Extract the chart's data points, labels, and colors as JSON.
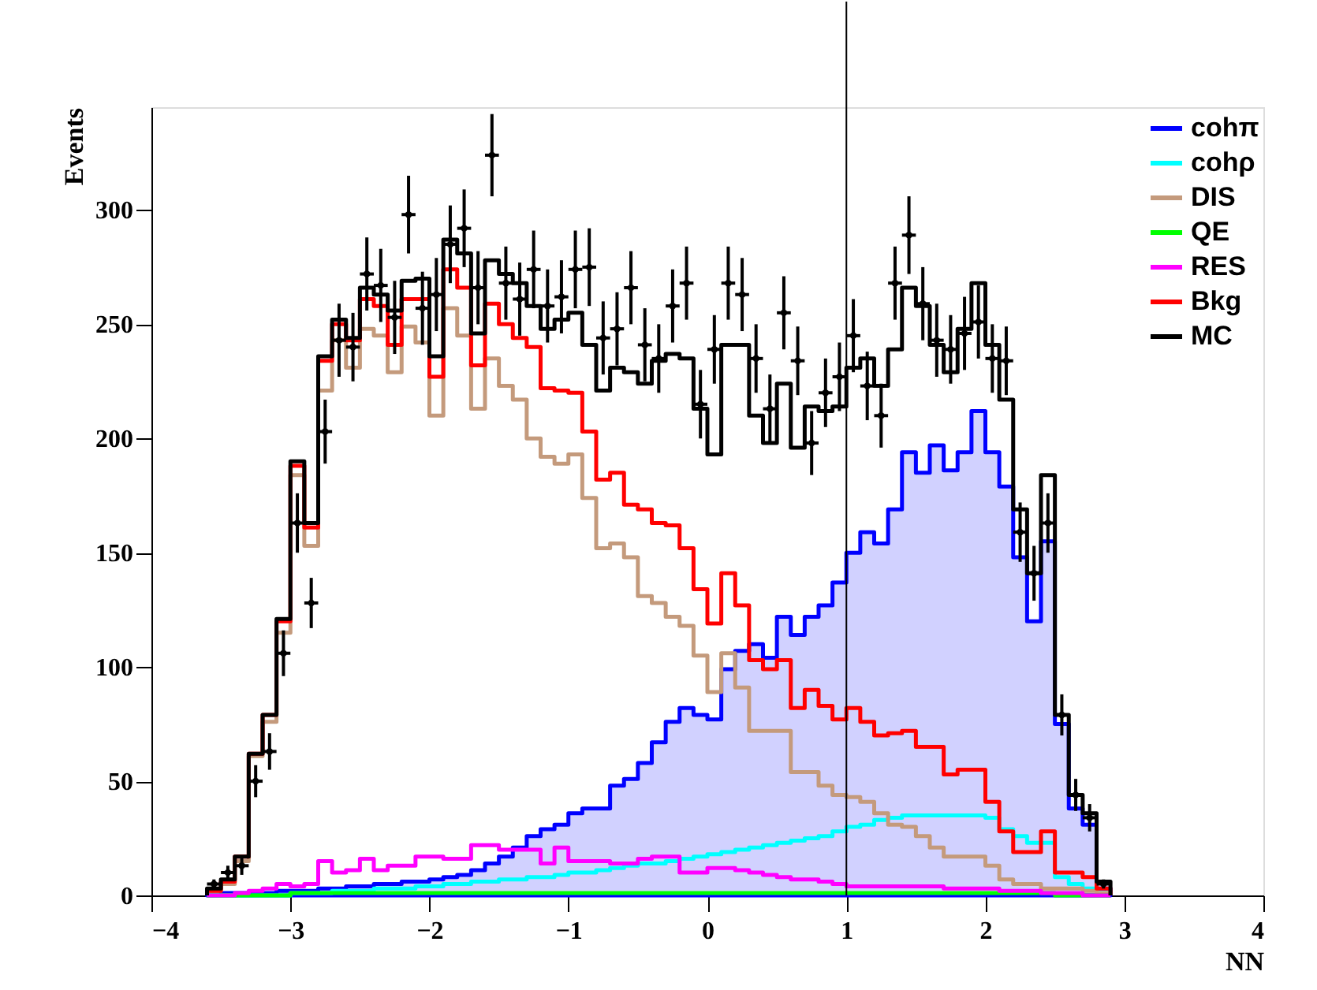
{
  "chart_data": {
    "type": "histogram",
    "xlabel": "NN",
    "ylabel": "Events",
    "bins": [
      -3.6,
      -3.5,
      -3.4,
      -3.3,
      -3.2,
      -3.1,
      -3.0,
      -2.9,
      -2.8,
      -2.7,
      -2.6,
      -2.5,
      -2.4,
      -2.3,
      -2.2,
      -2.1,
      -2.0,
      -1.9,
      -1.8,
      -1.7,
      -1.6,
      -1.5,
      -1.4,
      -1.3,
      -1.2,
      -1.1,
      -1.0,
      -0.9,
      -0.8,
      -0.7,
      -0.6,
      -0.5,
      -0.4,
      -0.3,
      -0.2,
      -0.1,
      0.0,
      0.1,
      0.2,
      0.3,
      0.4,
      0.5,
      0.6,
      0.7,
      0.8,
      0.9,
      1.0,
      1.1,
      1.2,
      1.3,
      1.4,
      1.5,
      1.6,
      1.7,
      1.8,
      1.9,
      2.0,
      2.1,
      2.2,
      2.3,
      2.4,
      2.5,
      2.6,
      2.7,
      2.8,
      2.9
    ],
    "xlim": [
      -4,
      4
    ],
    "xticks": [
      -4,
      -3,
      -2,
      -1,
      0,
      1,
      2,
      3,
      4
    ],
    "ylim": [
      0,
      345
    ],
    "yticks": [
      0,
      50,
      100,
      150,
      200,
      250,
      300
    ],
    "grid": false,
    "legend": "top right",
    "marker": "circle",
    "ref_lines": [
      {
        "axis": "x",
        "value": 1,
        "color": "#000000"
      }
    ],
    "series": [
      {
        "name": "cohπ",
        "color": "#0000ff",
        "values": [
          0,
          1,
          1,
          1,
          1,
          2,
          2,
          2,
          3,
          3,
          4,
          4,
          5,
          5,
          6,
          6,
          7,
          8,
          9,
          11,
          14,
          17,
          21,
          26,
          29,
          31,
          36,
          38,
          38,
          48,
          51,
          58,
          67,
          76,
          82,
          79,
          77,
          99,
          107,
          110,
          104,
          122,
          114,
          122,
          127,
          137,
          150,
          159,
          154,
          169,
          194,
          185,
          197,
          186,
          194,
          212,
          194,
          179,
          148,
          120,
          155,
          75,
          38,
          31,
          3
        ]
      },
      {
        "name": "cohρ",
        "color": "#00ffff",
        "values": [
          0,
          0,
          0,
          0,
          0,
          0,
          1,
          1,
          1,
          2,
          2,
          2,
          3,
          3,
          3,
          4,
          4,
          5,
          5,
          6,
          6,
          7,
          7,
          8,
          8,
          9,
          10,
          10,
          11,
          12,
          13,
          14,
          14,
          15,
          16,
          17,
          18,
          19,
          20,
          21,
          22,
          23,
          24,
          25,
          26,
          28,
          30,
          31,
          33,
          34,
          35,
          35,
          35,
          35,
          35,
          35,
          34,
          29,
          26,
          23,
          23,
          8,
          5,
          3,
          1
        ]
      },
      {
        "name": "DIS",
        "color": "#c49a7c",
        "values": [
          2,
          5,
          15,
          61,
          76,
          115,
          184,
          153,
          221,
          243,
          231,
          248,
          245,
          229,
          249,
          242,
          210,
          257,
          245,
          213,
          235,
          223,
          217,
          200,
          192,
          189,
          193,
          174,
          152,
          154,
          148,
          131,
          128,
          122,
          118,
          105,
          89,
          106,
          91,
          72,
          72,
          72,
          54,
          54,
          48,
          44,
          43,
          41,
          36,
          31,
          30,
          26,
          21,
          17,
          17,
          17,
          13,
          7,
          5,
          5,
          3,
          3,
          3,
          2,
          1
        ]
      },
      {
        "name": "QE",
        "color": "#00ff00",
        "values": [
          0,
          0,
          0,
          0,
          0,
          0,
          1,
          1,
          1,
          1,
          1,
          1,
          1,
          1,
          1,
          1,
          1,
          1,
          1,
          1,
          1,
          1,
          1,
          1,
          1,
          1,
          1,
          1,
          1,
          1,
          1,
          1,
          1,
          1,
          1,
          1,
          1,
          1,
          1,
          1,
          1,
          1,
          1,
          1,
          1,
          1,
          1,
          1,
          1,
          1,
          1,
          1,
          1,
          1,
          1,
          1,
          1,
          1,
          1,
          1,
          1,
          0,
          0,
          0,
          0
        ]
      },
      {
        "name": "RES",
        "color": "#ff00ff",
        "values": [
          0,
          0,
          1,
          2,
          3,
          5,
          4,
          5,
          15,
          10,
          11,
          16,
          11,
          13,
          13,
          17,
          17,
          16,
          16,
          22,
          22,
          20,
          20,
          20,
          14,
          21,
          15,
          15,
          15,
          14,
          14,
          16,
          17,
          17,
          10,
          10,
          12,
          12,
          11,
          10,
          9,
          8,
          7,
          7,
          6,
          5,
          4,
          4,
          4,
          4,
          4,
          4,
          4,
          3,
          3,
          3,
          3,
          2,
          2,
          2,
          1,
          1,
          1,
          0,
          0
        ]
      },
      {
        "name": "Bkg",
        "color": "#ff0000",
        "values": [
          2,
          6,
          17,
          62,
          79,
          120,
          188,
          161,
          234,
          250,
          243,
          261,
          258,
          241,
          261,
          261,
          227,
          274,
          266,
          232,
          259,
          250,
          244,
          240,
          222,
          221,
          220,
          203,
          182,
          185,
          171,
          169,
          163,
          162,
          152,
          134,
          119,
          141,
          127,
          103,
          99,
          103,
          82,
          90,
          83,
          77,
          82,
          76,
          70,
          71,
          72,
          65,
          65,
          53,
          55,
          55,
          41,
          28,
          19,
          19,
          28,
          10,
          10,
          8,
          3
        ]
      },
      {
        "name": "MC",
        "color": "#000000",
        "values": [
          3,
          7,
          17,
          62,
          79,
          121,
          190,
          163,
          236,
          252,
          244,
          266,
          263,
          256,
          269,
          270,
          236,
          287,
          281,
          246,
          278,
          272,
          268,
          258,
          248,
          252,
          255,
          241,
          221,
          231,
          229,
          224,
          234,
          237,
          235,
          213,
          193,
          241,
          241,
          210,
          198,
          224,
          196,
          214,
          212,
          214,
          231,
          235,
          223,
          239,
          266,
          258,
          241,
          229,
          248,
          268,
          241,
          217,
          169,
          141,
          184,
          79,
          44,
          36,
          6
        ]
      },
      {
        "type": "scatter",
        "color": "#000000",
        "x": [
          -3.55,
          -3.45,
          -3.35,
          -3.25,
          -3.15,
          -3.05,
          -2.95,
          -2.85,
          -2.75,
          -2.65,
          -2.55,
          -2.45,
          -2.35,
          -2.25,
          -2.15,
          -2.05,
          -1.95,
          -1.85,
          -1.75,
          -1.65,
          -1.55,
          -1.45,
          -1.35,
          -1.25,
          -1.15,
          -1.05,
          -0.95,
          -0.85,
          -0.75,
          -0.65,
          -0.55,
          -0.45,
          -0.35,
          -0.25,
          -0.15,
          -0.05,
          0.05,
          0.15,
          0.25,
          0.35,
          0.45,
          0.55,
          0.65,
          0.75,
          0.85,
          0.95,
          1.05,
          1.15,
          1.25,
          1.35,
          1.45,
          1.55,
          1.65,
          1.75,
          1.85,
          1.95,
          2.05,
          2.15,
          2.25,
          2.35,
          2.45,
          2.55,
          2.65,
          2.75,
          2.85
        ],
        "values": [
          5,
          10,
          13,
          50,
          63,
          106,
          163,
          128,
          203,
          243,
          240,
          272,
          267,
          253,
          298,
          257,
          263,
          285,
          292,
          266,
          324,
          268,
          261,
          274,
          258,
          262,
          274,
          275,
          244,
          248,
          266,
          241,
          235,
          258,
          268,
          215,
          239,
          268,
          263,
          235,
          213,
          255,
          234,
          198,
          220,
          227,
          245,
          223,
          210,
          268,
          289,
          259,
          243,
          239,
          246,
          251,
          235,
          234,
          159,
          141,
          163,
          79,
          44,
          34,
          5
        ],
        "errors": [
          2,
          3,
          4,
          7,
          8,
          10,
          13,
          11,
          14,
          16,
          15,
          16,
          16,
          16,
          17,
          16,
          16,
          17,
          17,
          16,
          18,
          16,
          16,
          17,
          16,
          16,
          17,
          17,
          16,
          16,
          16,
          16,
          15,
          16,
          16,
          15,
          15,
          16,
          16,
          15,
          15,
          16,
          15,
          14,
          15,
          15,
          16,
          15,
          14,
          16,
          17,
          16,
          16,
          15,
          16,
          16,
          15,
          15,
          13,
          12,
          13,
          9,
          7,
          6,
          2
        ],
        "xerrors": [
          0.05,
          0.05,
          0.05,
          0.05,
          0.05,
          0.05,
          0.05,
          0.05,
          0.05,
          0.05,
          0.05,
          0.05,
          0.05,
          0.05,
          0.05,
          0.05,
          0.05,
          0.05,
          0.05,
          0.05,
          0.05,
          0.05,
          0.05,
          0.05,
          0.05,
          0.05,
          0.05,
          0.05,
          0.05,
          0.05,
          0.05,
          0.05,
          0.05,
          0.05,
          0.05,
          0.05,
          0.05,
          0.05,
          0.05,
          0.05,
          0.05,
          0.05,
          0.05,
          0.05,
          0.05,
          0.05,
          0.05,
          0.05,
          0.05,
          0.05,
          0.05,
          0.05,
          0.05,
          0.05,
          0.05,
          0.05,
          0.05,
          0.05,
          0.05,
          0.05,
          0.05,
          0.05,
          0.05,
          0.05,
          0.05
        ]
      }
    ]
  }
}
